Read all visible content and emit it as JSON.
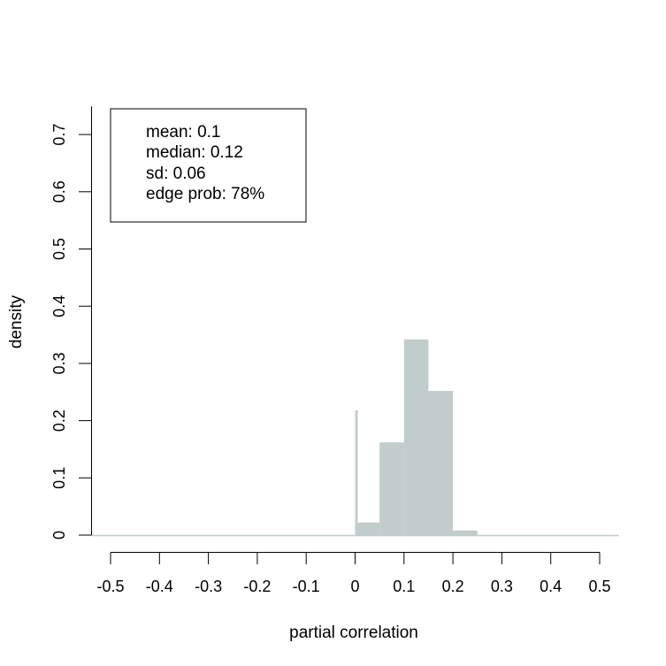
{
  "chart_data": {
    "type": "bar",
    "title": "",
    "xlabel": "partial correlation",
    "ylabel": "density",
    "xlim": [
      -0.5,
      0.5
    ],
    "ylim": [
      0,
      0.75
    ],
    "x_ticks": [
      "-0.5",
      "-0.4",
      "-0.3",
      "-0.2",
      "-0.1",
      "0",
      "0.1",
      "0.2",
      "0.3",
      "0.4",
      "0.5"
    ],
    "x_tick_values": [
      -0.5,
      -0.4,
      -0.3,
      -0.2,
      -0.1,
      0,
      0.1,
      0.2,
      0.3,
      0.4,
      0.5
    ],
    "y_ticks": [
      "0",
      "0.1",
      "0.2",
      "0.3",
      "0.4",
      "0.5",
      "0.6",
      "0.7"
    ],
    "y_tick_values": [
      0,
      0.1,
      0.2,
      0.3,
      0.4,
      0.5,
      0.6,
      0.7
    ],
    "bar_color": "#c2cccb",
    "bins": [
      {
        "x0": 0.0,
        "x1": 0.05,
        "value": 0.022
      },
      {
        "x0": 0.05,
        "x1": 0.1,
        "value": 0.162
      },
      {
        "x0": 0.1,
        "x1": 0.15,
        "value": 0.342
      },
      {
        "x0": 0.15,
        "x1": 0.2,
        "value": 0.252
      },
      {
        "x0": 0.2,
        "x1": 0.25,
        "value": 0.008
      }
    ],
    "spike": {
      "x": 0.0,
      "value": 0.218
    },
    "legend": {
      "placement": "top-left",
      "lines": [
        "mean: 0.1",
        "median: 0.12",
        "sd: 0.06",
        "edge prob: 78%"
      ]
    }
  }
}
